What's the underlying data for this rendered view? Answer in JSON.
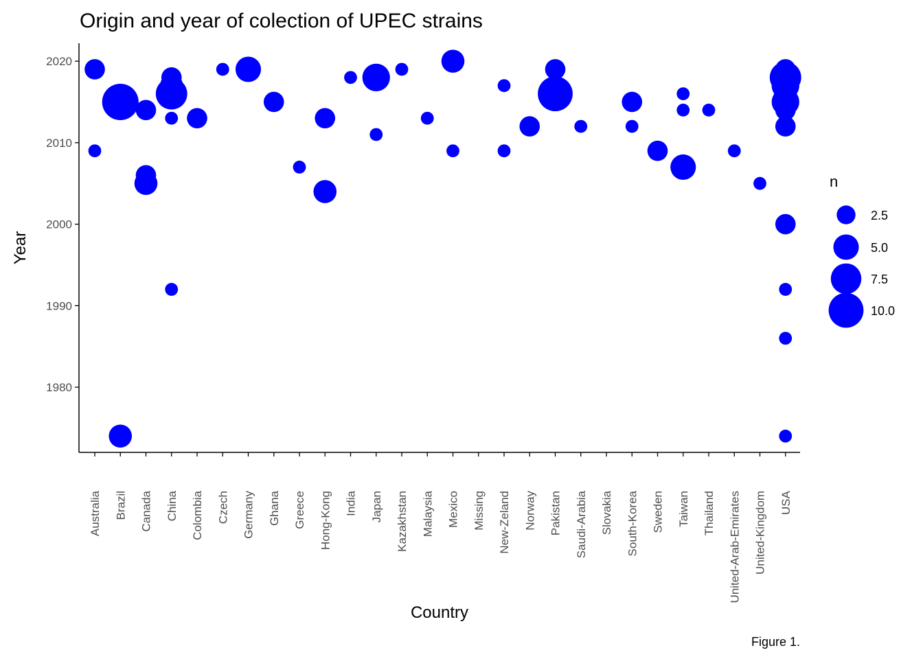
{
  "chart_data": {
    "type": "scatter",
    "title": "Origin and year of colection of UPEC strains",
    "xlabel": "Country",
    "ylabel": "Year",
    "caption": "Figure 1.",
    "categories": [
      "Australia",
      "Brazil",
      "Canada",
      "China",
      "Colombia",
      "Czech",
      "Germany",
      "Ghana",
      "Greece",
      "Hong-Kong",
      "India",
      "Japan",
      "Kazakhstan",
      "Malaysia",
      "Mexico",
      "Missing",
      "New-Zeland",
      "Norway",
      "Pakistan",
      "Saudi-Arabia",
      "Slovakia",
      "South-Korea",
      "Sweden",
      "Taiwan",
      "Thailand",
      "United-Arab-Emirates",
      "United-Kingdom",
      "USA"
    ],
    "y_ticks": [
      1980,
      1990,
      2000,
      2010,
      2020
    ],
    "ylim": [
      1972,
      2022.2
    ],
    "size_legend": {
      "title": "n",
      "values": [
        2.5,
        5.0,
        7.5,
        10.0
      ],
      "labels": [
        "2.5",
        "5.0",
        "7.5",
        "10.0"
      ]
    },
    "grid": false,
    "legend_position": "right",
    "point_color": "#0000FF",
    "points": [
      {
        "country": "Australia",
        "year": 2019,
        "n": 3
      },
      {
        "country": "Australia",
        "year": 2009,
        "n": 1
      },
      {
        "country": "Brazil",
        "year": 2015,
        "n": 11
      },
      {
        "country": "Brazil",
        "year": 1974,
        "n": 4
      },
      {
        "country": "Canada",
        "year": 2014,
        "n": 3
      },
      {
        "country": "Canada",
        "year": 2006,
        "n": 3
      },
      {
        "country": "Canada",
        "year": 2005,
        "n": 4
      },
      {
        "country": "China",
        "year": 2018,
        "n": 3
      },
      {
        "country": "China",
        "year": 2017,
        "n": 4
      },
      {
        "country": "China",
        "year": 2016,
        "n": 8
      },
      {
        "country": "China",
        "year": 2013,
        "n": 1
      },
      {
        "country": "China",
        "year": 1992,
        "n": 1
      },
      {
        "country": "Colombia",
        "year": 2013,
        "n": 3
      },
      {
        "country": "Czech",
        "year": 2019,
        "n": 1
      },
      {
        "country": "Germany",
        "year": 2019,
        "n": 5
      },
      {
        "country": "Ghana",
        "year": 2015,
        "n": 3
      },
      {
        "country": "Greece",
        "year": 2007,
        "n": 1
      },
      {
        "country": "Hong-Kong",
        "year": 2013,
        "n": 3
      },
      {
        "country": "Hong-Kong",
        "year": 2004,
        "n": 4
      },
      {
        "country": "India",
        "year": 2018,
        "n": 1
      },
      {
        "country": "Japan",
        "year": 2018,
        "n": 6
      },
      {
        "country": "Japan",
        "year": 2011,
        "n": 1
      },
      {
        "country": "Kazakhstan",
        "year": 2019,
        "n": 1
      },
      {
        "country": "Malaysia",
        "year": 2013,
        "n": 1
      },
      {
        "country": "Mexico",
        "year": 2020,
        "n": 4
      },
      {
        "country": "Mexico",
        "year": 2009,
        "n": 1
      },
      {
        "country": "New-Zeland",
        "year": 2017,
        "n": 1
      },
      {
        "country": "New-Zeland",
        "year": 2009,
        "n": 1
      },
      {
        "country": "Norway",
        "year": 2012,
        "n": 3
      },
      {
        "country": "Pakistan",
        "year": 2019,
        "n": 3
      },
      {
        "country": "Pakistan",
        "year": 2016,
        "n": 10
      },
      {
        "country": "Saudi-Arabia",
        "year": 2012,
        "n": 1
      },
      {
        "country": "South-Korea",
        "year": 2015,
        "n": 3
      },
      {
        "country": "South-Korea",
        "year": 2012,
        "n": 1
      },
      {
        "country": "Sweden",
        "year": 2009,
        "n": 3
      },
      {
        "country": "Taiwan",
        "year": 2016,
        "n": 1
      },
      {
        "country": "Taiwan",
        "year": 2014,
        "n": 1
      },
      {
        "country": "Taiwan",
        "year": 2007,
        "n": 5
      },
      {
        "country": "Thailand",
        "year": 2014,
        "n": 1
      },
      {
        "country": "United-Arab-Emirates",
        "year": 2009,
        "n": 1
      },
      {
        "country": "United-Kingdom",
        "year": 2005,
        "n": 1
      },
      {
        "country": "USA",
        "year": 2019,
        "n": 3
      },
      {
        "country": "USA",
        "year": 2018,
        "n": 8
      },
      {
        "country": "USA",
        "year": 2017,
        "n": 6
      },
      {
        "country": "USA",
        "year": 2016,
        "n": 4
      },
      {
        "country": "USA",
        "year": 2015,
        "n": 6
      },
      {
        "country": "USA",
        "year": 2014,
        "n": 3
      },
      {
        "country": "USA",
        "year": 2013,
        "n": 1
      },
      {
        "country": "USA",
        "year": 2012,
        "n": 3
      },
      {
        "country": "USA",
        "year": 2000,
        "n": 3
      },
      {
        "country": "USA",
        "year": 1992,
        "n": 1
      },
      {
        "country": "USA",
        "year": 1986,
        "n": 1
      },
      {
        "country": "USA",
        "year": 1974,
        "n": 1
      }
    ]
  }
}
